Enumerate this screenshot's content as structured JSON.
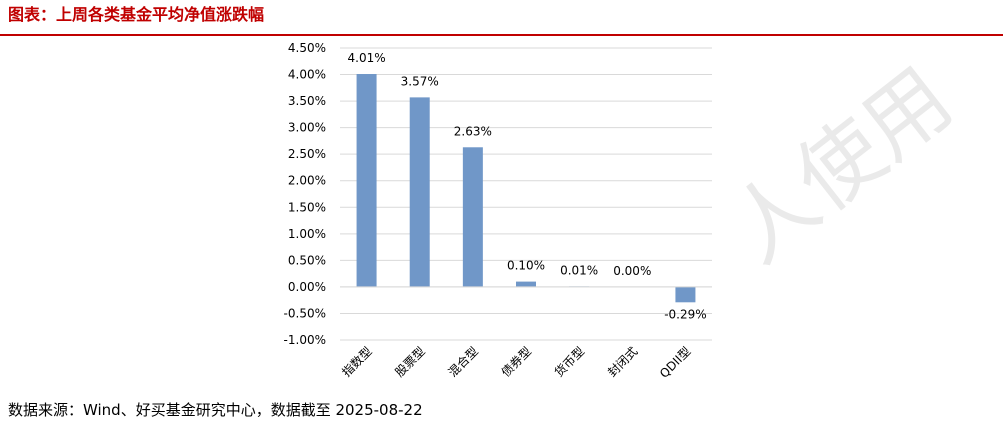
{
  "header": {
    "title": "图表：上周各类基金平均净值涨跌幅"
  },
  "footer": {
    "source": "数据来源：Wind、好买基金研究中心，数据截至  2025-08-22"
  },
  "watermark": {
    "text": "人使用"
  },
  "colors": {
    "title": "#c00000",
    "bar": "#7097c8",
    "grid": "#d9d9d9",
    "watermark": "#d9d9d9"
  },
  "chart_data": {
    "type": "bar",
    "categories": [
      "指数型",
      "股票型",
      "混合型",
      "债券型",
      "货币型",
      "封闭式",
      "QDII型"
    ],
    "values": [
      4.01,
      3.57,
      2.63,
      0.1,
      0.01,
      0.0,
      -0.29
    ],
    "value_labels": [
      "4.01%",
      "3.57%",
      "2.63%",
      "0.10%",
      "0.01%",
      "0.00%",
      "-0.29%"
    ],
    "ylim": [
      -1.0,
      4.5
    ],
    "y_ticks": [
      4.5,
      4.0,
      3.5,
      3.0,
      2.5,
      2.0,
      1.5,
      1.0,
      0.5,
      0.0,
      -0.5,
      -1.0
    ],
    "y_tick_labels": [
      "4.50%",
      "4.00%",
      "3.50%",
      "3.00%",
      "2.50%",
      "2.00%",
      "1.50%",
      "1.00%",
      "0.50%",
      "0.00%",
      "-0.50%",
      "-1.00%"
    ],
    "grid": true,
    "legend": "none"
  }
}
